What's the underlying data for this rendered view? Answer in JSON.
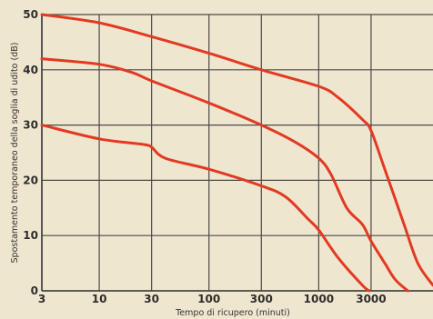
{
  "chart_data": {
    "type": "line",
    "title": "",
    "xlabel": "Tempo di ricupero (minuti)",
    "ylabel": "Spostamento temporaneo della soglia di udito (dB)",
    "x_scale": "log",
    "xlim": [
      3,
      11000
    ],
    "ylim": [
      0,
      50
    ],
    "x_ticks": [
      3,
      10,
      30,
      100,
      300,
      1000,
      3000
    ],
    "x_tick_labels": [
      "3",
      "10",
      "30",
      "100",
      "300",
      "1000",
      "3000"
    ],
    "y_ticks": [
      0,
      10,
      20,
      30,
      40,
      50
    ],
    "y_tick_labels": [
      "0",
      "10",
      "20",
      "30",
      "40",
      "50"
    ],
    "grid": true,
    "line_color": "#e23a22",
    "series": [
      {
        "x": [
          3,
          10,
          30,
          100,
          300,
          1000,
          1500,
          2500,
          3000,
          4000,
          6000,
          8000,
          11000
        ],
        "values": [
          50,
          48.5,
          46,
          43,
          40,
          37,
          35,
          31,
          29,
          22,
          12,
          5,
          1
        ]
      },
      {
        "x": [
          3,
          10,
          20,
          30,
          100,
          300,
          600,
          1000,
          1300,
          1800,
          2500,
          3000,
          4000,
          5000,
          6500
        ],
        "values": [
          42,
          41,
          39.5,
          38,
          34,
          30,
          27,
          24,
          21,
          15,
          12,
          9,
          5,
          2,
          0
        ]
      },
      {
        "x": [
          3,
          10,
          25,
          30,
          40,
          100,
          300,
          500,
          800,
          1000,
          1500,
          2500,
          2900
        ],
        "values": [
          30,
          27.5,
          26.5,
          26,
          24,
          22,
          19,
          17,
          13,
          11,
          6,
          1,
          0
        ]
      }
    ]
  }
}
